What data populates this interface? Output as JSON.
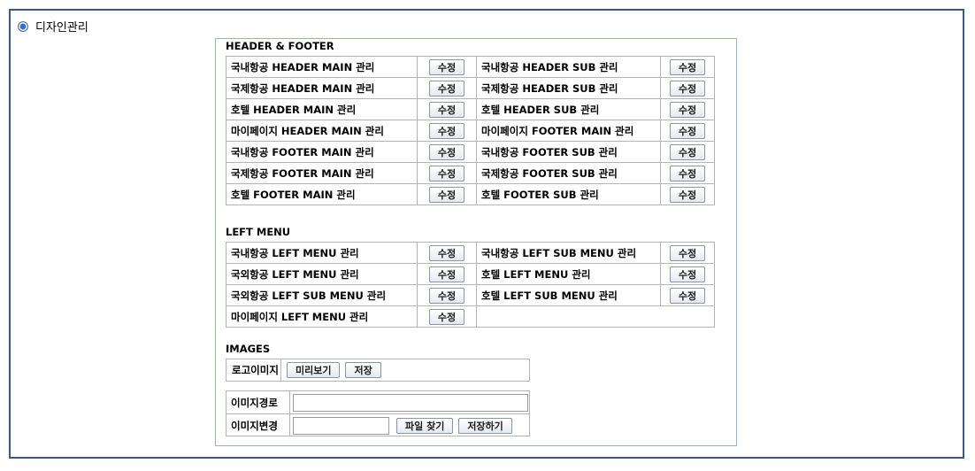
{
  "section": {
    "title": "디자인관리"
  },
  "edit_label": "수정",
  "header_footer": {
    "title": "HEADER & FOOTER",
    "rows": [
      {
        "left": "국내항공 HEADER MAIN 관리",
        "right": "국내항공 HEADER SUB 관리"
      },
      {
        "left": "국제항공 HEADER MAIN 관리",
        "right": "국제항공 HEADER SUB 관리"
      },
      {
        "left": "호텔 HEADER MAIN 관리",
        "right": "호텔 HEADER SUB 관리"
      },
      {
        "left": "마이페이지 HEADER MAIN 관리",
        "right": "마이페이지 FOOTER MAIN 관리"
      },
      {
        "left": "국내항공 FOOTER MAIN 관리",
        "right": "국내항공 FOOTER SUB 관리"
      },
      {
        "left": "국제항공 FOOTER MAIN 관리",
        "right": "국제항공 FOOTER SUB 관리"
      },
      {
        "left": "호텔 FOOTER MAIN 관리",
        "right": "호텔 FOOTER SUB 관리"
      }
    ]
  },
  "left_menu": {
    "title": "LEFT MENU",
    "rows": [
      {
        "left": "국내항공 LEFT MENU 관리",
        "right": "국내항공 LEFT SUB MENU 관리"
      },
      {
        "left": "국외항공 LEFT MENU 관리",
        "right": "호텔 LEFT MENU 관리"
      },
      {
        "left": "국외항공 LEFT SUB MENU 관리",
        "right": "호텔 LEFT SUB MENU 관리"
      },
      {
        "left": "마이페이지 LEFT MENU 관리",
        "right": ""
      }
    ]
  },
  "images": {
    "title": "IMAGES",
    "logo_label": "로고이미지",
    "preview_button": "미리보기",
    "save_button": "저장",
    "path_label": "이미지경로",
    "path_value": "",
    "change_label": "이미지변경",
    "file_value": "",
    "find_file_button": "파일 찾기",
    "save_changes_button": "저장하기"
  }
}
